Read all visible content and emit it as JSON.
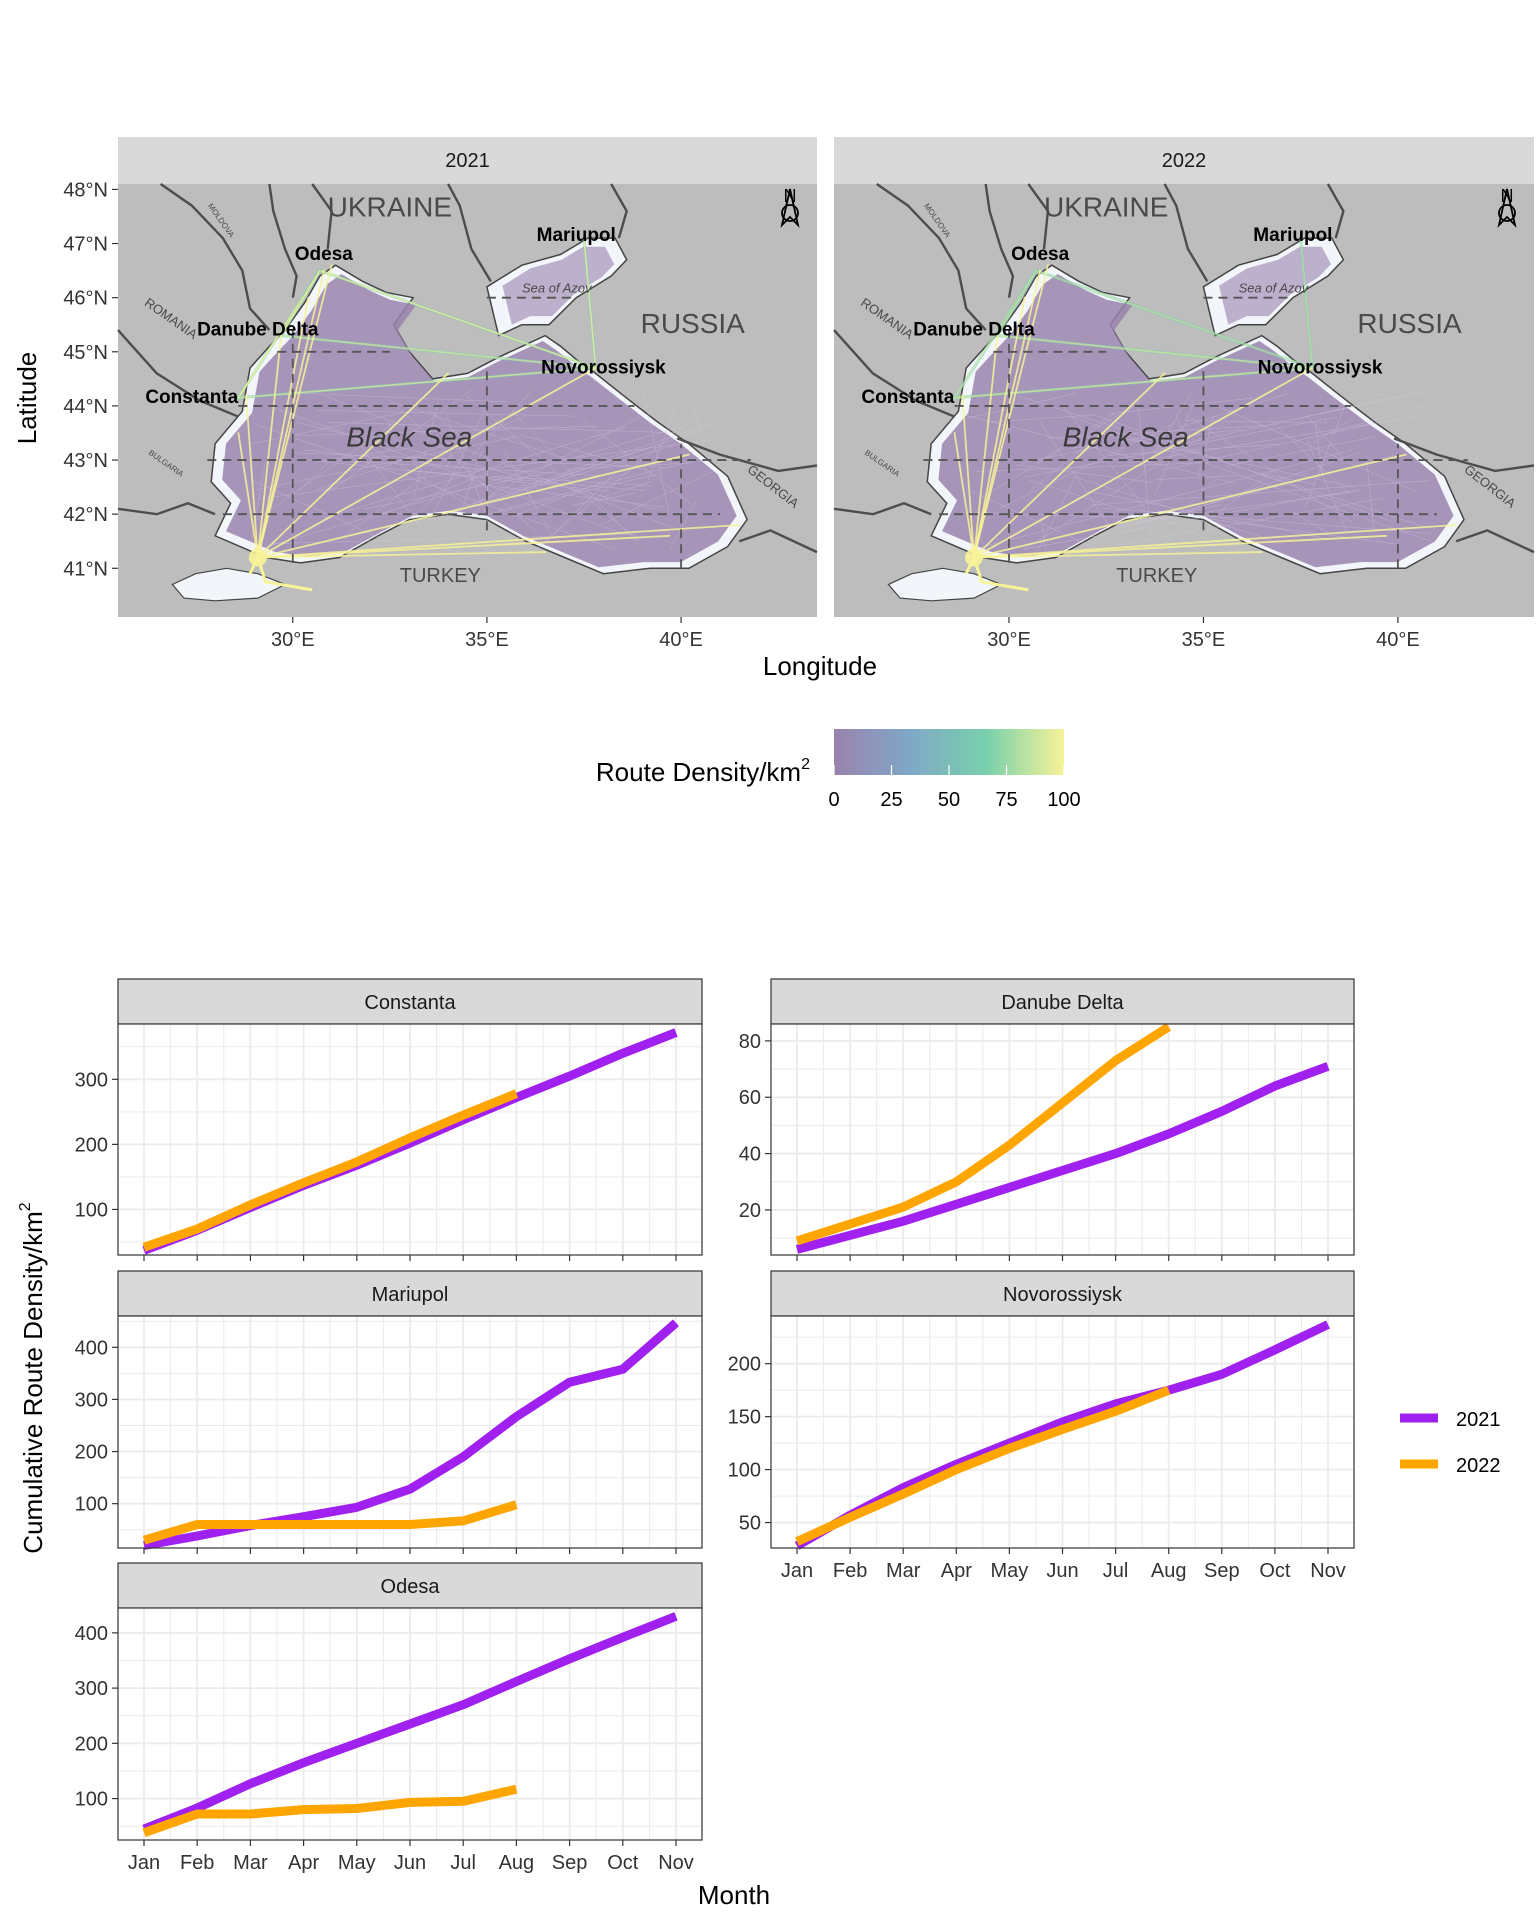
{
  "maps": {
    "panels": [
      "2021",
      "2022"
    ],
    "xlabel": "Longitude",
    "ylabel": "Latitude",
    "lon_ticks": [
      30,
      35,
      40
    ],
    "lon_tick_labels": [
      "30°E",
      "35°E",
      "40°E"
    ],
    "lat_ticks": [
      41,
      42,
      43,
      44,
      45,
      46,
      47,
      48
    ],
    "lat_tick_labels": [
      "41°N",
      "42°N",
      "43°N",
      "44°N",
      "45°N",
      "46°N",
      "47°N",
      "48°N"
    ],
    "lon_range": [
      25.5,
      43.5
    ],
    "lat_range": [
      40.1,
      48.1
    ],
    "sea_label": "Black Sea",
    "country_labels": [
      "UKRAINE",
      "RUSSIA",
      "TURKEY",
      "GEORGIA",
      "ROMANIA",
      "BULGARIA",
      "MOLDOVA"
    ],
    "minor_label": "Sea of Azov",
    "north_arrow_label": "N",
    "ports": [
      {
        "name": "Odesa",
        "lon": 30.7,
        "lat": 46.5
      },
      {
        "name": "Mariupol",
        "lon": 37.5,
        "lat": 47.1
      },
      {
        "name": "Danube Delta",
        "lon": 29.7,
        "lat": 45.3
      },
      {
        "name": "Novorossiysk",
        "lon": 37.8,
        "lat": 44.7
      },
      {
        "name": "Constanta",
        "lon": 28.6,
        "lat": 44.15
      }
    ],
    "legend_title": "Route Density/km",
    "legend_superscript": "2",
    "legend_ticks": [
      "0",
      "25",
      "50",
      "75",
      "100"
    ],
    "legend_colors": [
      "#9a82ad",
      "#7fa8c6",
      "#78d0ad",
      "#f7f397"
    ]
  },
  "chart_data": {
    "type": "line",
    "xlabel": "Month",
    "ylabel": "Cumulative Route Density/km",
    "ylabel_superscript": "2",
    "categories": [
      "Jan",
      "Feb",
      "Mar",
      "Apr",
      "May",
      "Jun",
      "Jul",
      "Aug",
      "Sep",
      "Oct",
      "Nov"
    ],
    "legend": [
      {
        "name": "2021",
        "color": "#a020f0"
      },
      {
        "name": "2022",
        "color": "#ffa500"
      }
    ],
    "panels": [
      {
        "title": "Constanta",
        "ylim": [
          30,
          385
        ],
        "yticks": [
          100,
          200,
          300
        ],
        "series": [
          {
            "name": "2021",
            "values": [
              37,
              68,
              103,
              137,
              168,
              202,
              238,
              272,
              305,
              340,
              372
            ]
          },
          {
            "name": "2022",
            "values": [
              42,
              70,
              107,
              141,
              173,
              210,
              245,
              278
            ]
          }
        ]
      },
      {
        "title": "Danube Delta",
        "ylim": [
          4,
          86
        ],
        "yticks": [
          20,
          40,
          60,
          80
        ],
        "series": [
          {
            "name": "2021",
            "values": [
              6,
              11,
              16,
              22,
              28,
              34,
              40,
              47,
              55,
              64,
              71
            ]
          },
          {
            "name": "2022",
            "values": [
              9,
              15,
              21,
              30,
              43,
              58,
              73,
              85
            ]
          }
        ]
      },
      {
        "title": "Mariupol",
        "ylim": [
          15,
          460
        ],
        "yticks": [
          100,
          200,
          300,
          400
        ],
        "series": [
          {
            "name": "2021",
            "values": [
              20,
              38,
              58,
              75,
              93,
              128,
              190,
              267,
              333,
              358,
              447
            ]
          },
          {
            "name": "2022",
            "values": [
              30,
              60,
              60,
              60,
              60,
              60,
              67,
              98
            ]
          }
        ]
      },
      {
        "title": "Novorossiysk",
        "ylim": [
          26,
          245
        ],
        "yticks": [
          50,
          100,
          150,
          200
        ],
        "series": [
          {
            "name": "2021",
            "values": [
              28,
              57,
              83,
              105,
              125,
              145,
              162,
              175,
              190,
              213,
              237
            ]
          },
          {
            "name": "2022",
            "values": [
              32,
              55,
              77,
              100,
              120,
              138,
              155,
              175
            ]
          }
        ]
      },
      {
        "title": "Odesa",
        "ylim": [
          25,
          445
        ],
        "yticks": [
          100,
          200,
          300,
          400
        ],
        "series": [
          {
            "name": "2021",
            "values": [
              45,
              83,
              127,
              165,
              200,
              235,
              270,
              312,
              353,
              392,
              430
            ]
          },
          {
            "name": "2022",
            "values": [
              38,
              72,
              72,
              80,
              82,
              93,
              95,
              117
            ]
          }
        ]
      }
    ]
  }
}
